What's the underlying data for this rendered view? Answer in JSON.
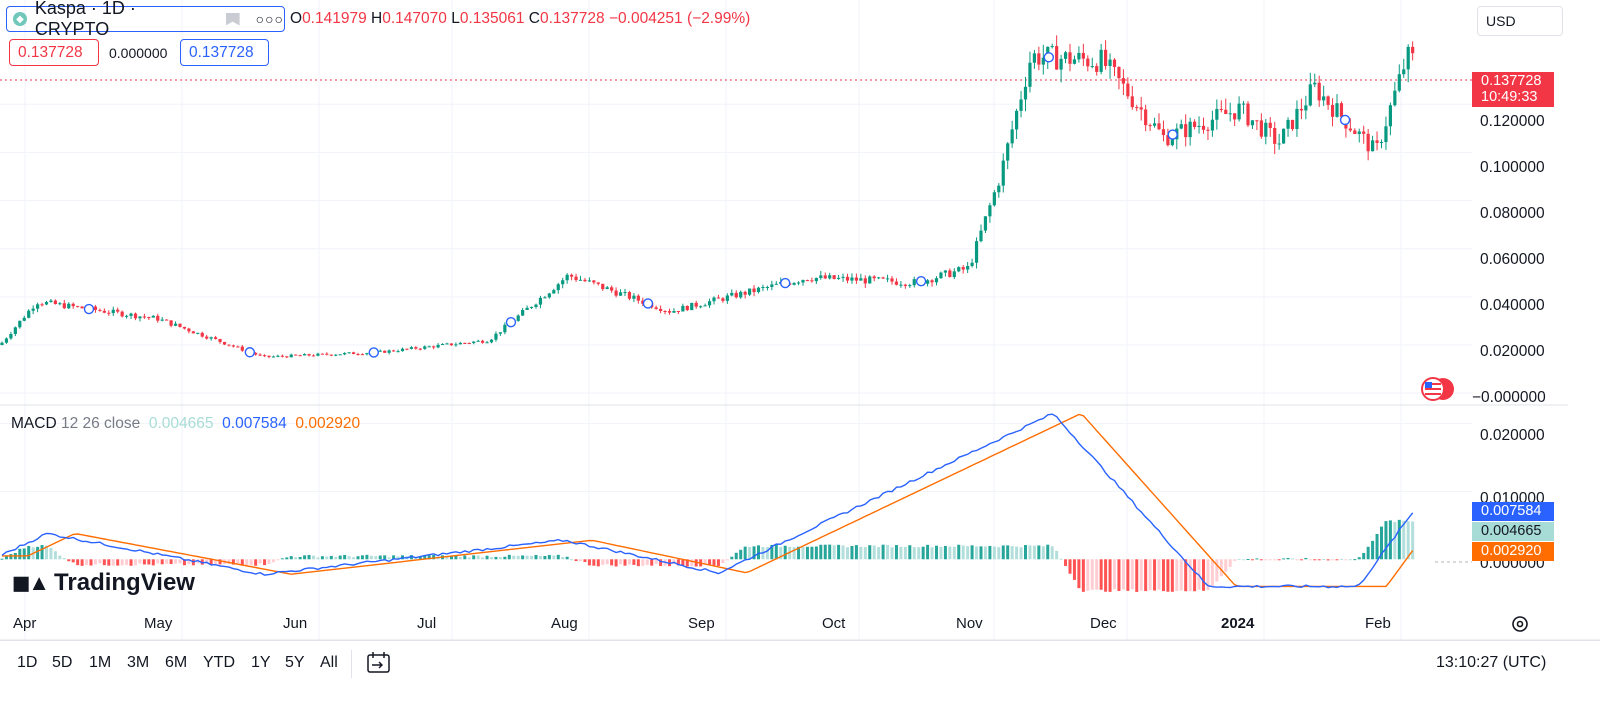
{
  "header": {
    "symbol_title": "Kaspa · 1D · CRYPTO",
    "more_label": "○○○",
    "ohlc": {
      "open_key": "O",
      "open": "0.141979",
      "high_key": "H",
      "high": "0.147070",
      "low_key": "L",
      "low": "0.135061",
      "close_key": "C",
      "close": "0.137728",
      "change": "−0.004251 (−2.99%)"
    },
    "sell_price": "0.137728",
    "spread": "0.000000",
    "buy_price": "0.137728",
    "currency": "USD"
  },
  "price_axis": {
    "labels": [
      "0.120000",
      "0.100000",
      "0.080000",
      "0.060000",
      "0.040000",
      "0.020000",
      "−0.000000"
    ],
    "last_price": "0.137728",
    "countdown": "10:49:33"
  },
  "macd": {
    "name": "MACD",
    "params": "12 26 close",
    "histogram": "0.004665",
    "macd": "0.007584",
    "signal": "0.002920",
    "axis_labels": [
      "0.020000",
      "0.010000",
      "0.000000"
    ]
  },
  "time_axis": [
    "Apr",
    "May",
    "Jun",
    "Jul",
    "Aug",
    "Sep",
    "Oct",
    "Nov",
    "Dec",
    "2024",
    "Feb"
  ],
  "ranges": [
    "1D",
    "5D",
    "1M",
    "3M",
    "6M",
    "YTD",
    "1Y",
    "5Y",
    "All"
  ],
  "clock": "13:10:27 (UTC)",
  "brand": "TradingView",
  "colors": {
    "up": "#089981",
    "down": "#f23645",
    "macd_line": "#2962ff",
    "signal_line": "#ff6d00",
    "hist_up": "#26a69a",
    "hist_down": "#ff5252"
  },
  "icons": [
    "kaspa-logo-icon",
    "flag-icon",
    "more-icon",
    "compare-range-icon",
    "settings-icon",
    "events-flag-icon"
  ],
  "chart_data": {
    "type": "candlestick",
    "price_range": [
      -0.002,
      0.155
    ],
    "macd_range": [
      -0.006,
      0.022
    ],
    "key_points": [
      {
        "date": "Apr 1",
        "close": 0.02
      },
      {
        "date": "Apr 8",
        "close": 0.038
      },
      {
        "date": "May 1",
        "close": 0.031
      },
      {
        "date": "May 25",
        "close": 0.015
      },
      {
        "date": "Jun 20",
        "close": 0.017
      },
      {
        "date": "Jul 15",
        "close": 0.022
      },
      {
        "date": "Aug 2",
        "close": 0.049
      },
      {
        "date": "Aug 25",
        "close": 0.034
      },
      {
        "date": "Sep 25",
        "close": 0.048
      },
      {
        "date": "Oct 20",
        "close": 0.046
      },
      {
        "date": "Nov 1",
        "close": 0.052
      },
      {
        "date": "Nov 8",
        "close": 0.09
      },
      {
        "date": "Nov 15",
        "close": 0.14
      },
      {
        "date": "Dec 1",
        "close": 0.138
      },
      {
        "date": "Dec 15",
        "close": 0.106
      },
      {
        "date": "Jan 1",
        "close": 0.118
      },
      {
        "date": "Jan 10",
        "close": 0.104
      },
      {
        "date": "Jan 18",
        "close": 0.127
      },
      {
        "date": "Feb 1",
        "close": 0.1
      },
      {
        "date": "Feb 8",
        "close": 0.14
      },
      {
        "date": "Feb 10",
        "close": 0.137728
      }
    ],
    "macd_key_points": [
      {
        "date": "Apr 10",
        "macd": 0.0038
      },
      {
        "date": "May 25",
        "macd": -0.0022
      },
      {
        "date": "Aug 1",
        "macd": 0.0028
      },
      {
        "date": "Sep 5",
        "macd": -0.002
      },
      {
        "date": "Nov 20",
        "macd": 0.0215
      },
      {
        "date": "Dec 25",
        "macd": -0.004
      },
      {
        "date": "Jan 28",
        "macd": -0.004
      },
      {
        "date": "Feb 10",
        "macd": 0.007584
      }
    ]
  }
}
